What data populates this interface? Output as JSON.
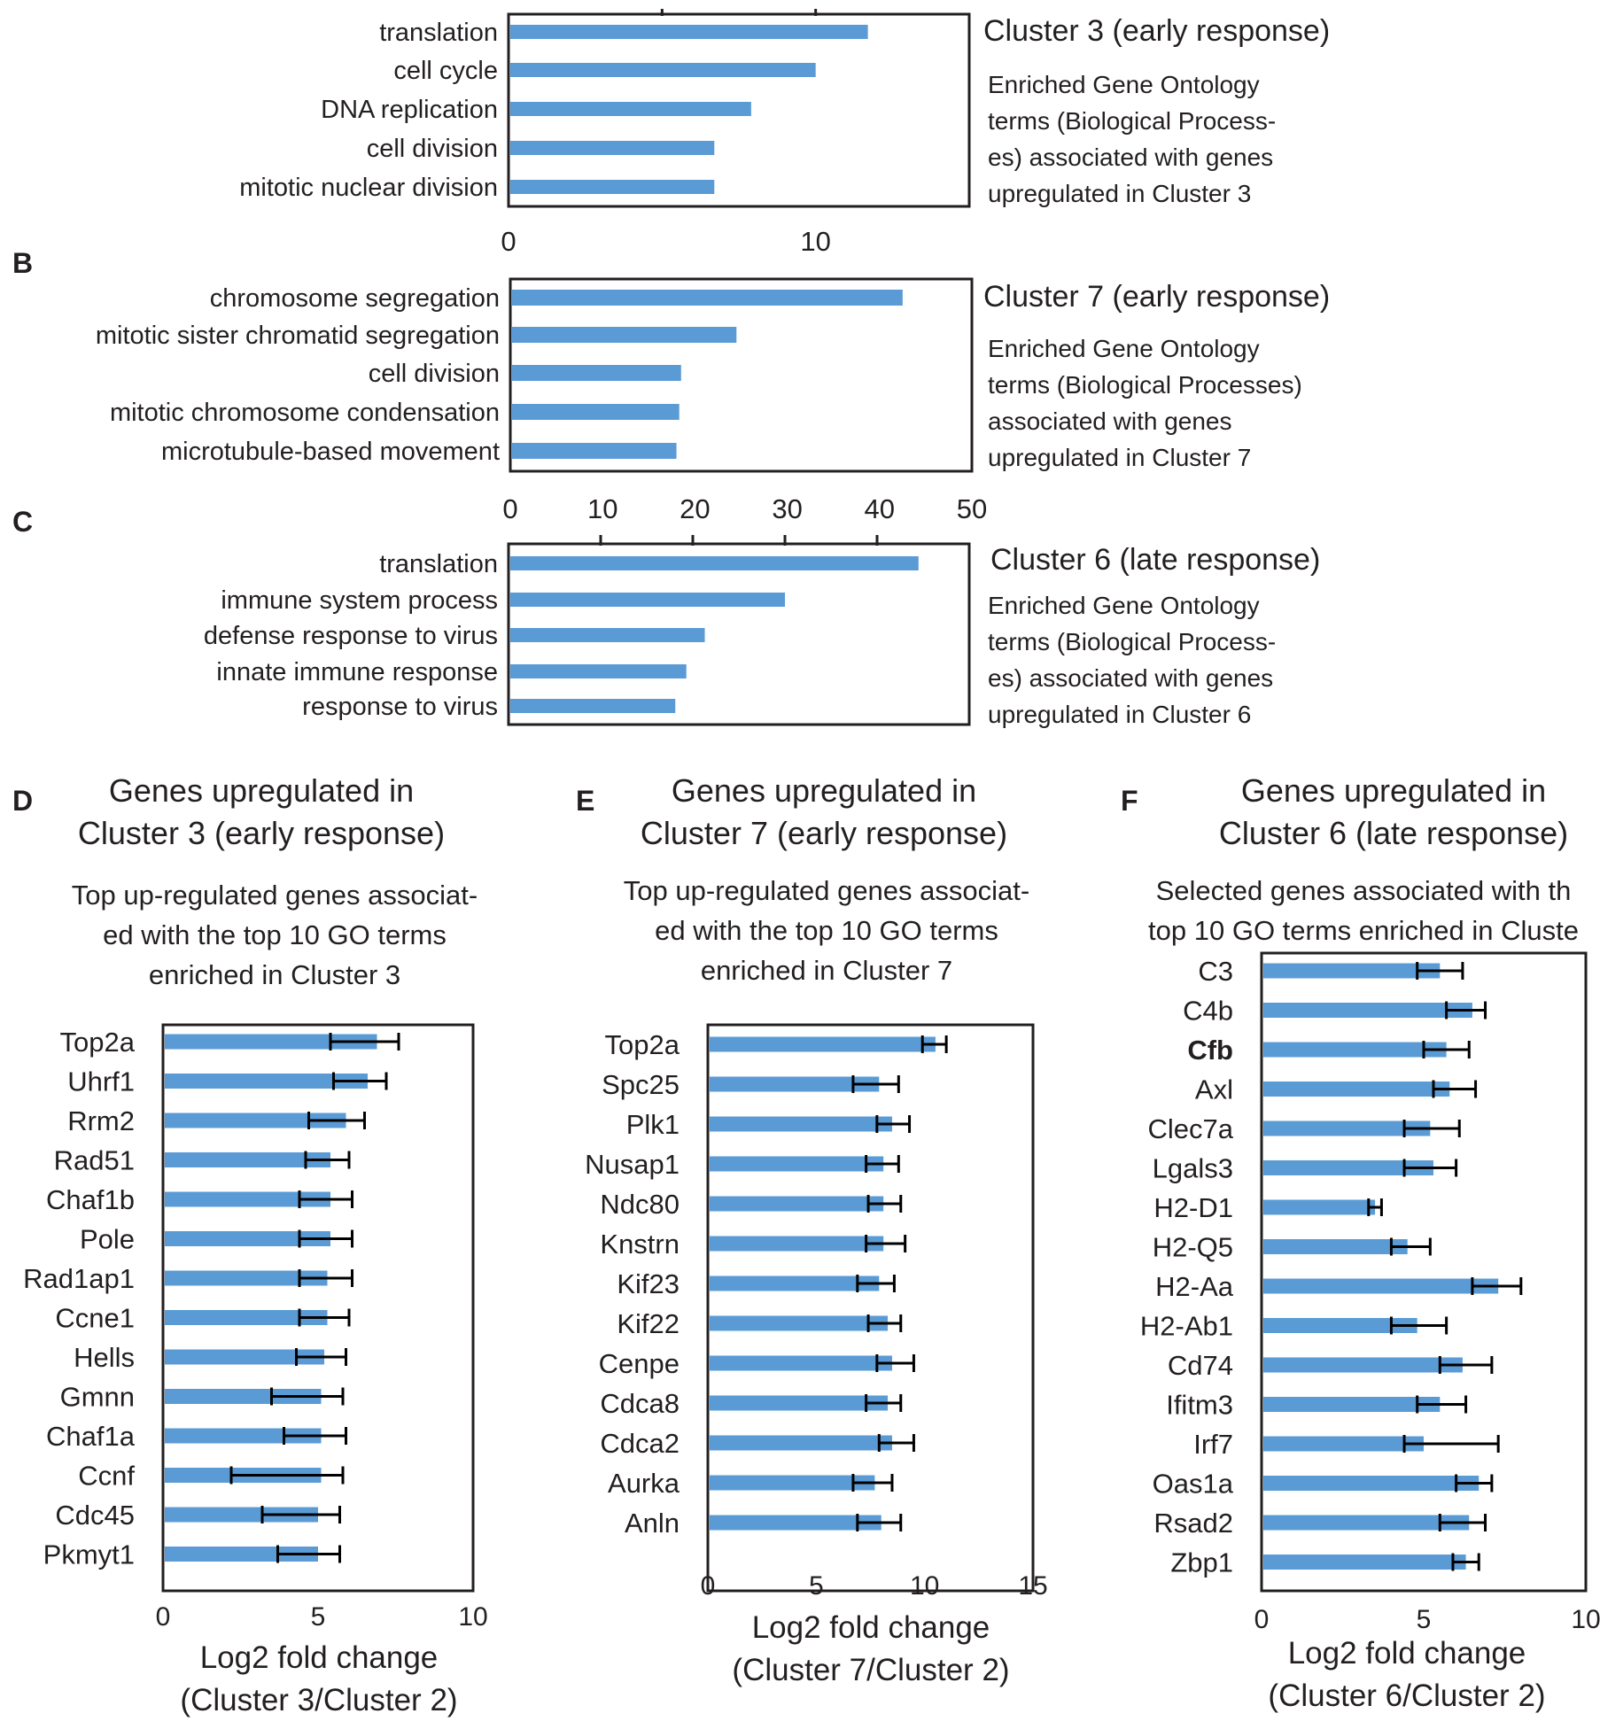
{
  "panel_labels": [
    "B",
    "C",
    "D",
    "E",
    "F"
  ],
  "chart_data": [
    {
      "id": "A",
      "type": "bar",
      "orientation": "horizontal",
      "title": "Cluster 3 (early response)",
      "description": [
        "Enriched Gene Ontology",
        "terms (Biological Process-",
        "es) associated with genes",
        "upregulated in Cluster 3"
      ],
      "categories": [
        "translation",
        "cell cycle",
        "DNA replication",
        "cell division",
        "mitotic nuclear division"
      ],
      "values": [
        11.7,
        10.0,
        7.9,
        6.7,
        6.7
      ],
      "xlim": [
        0,
        15
      ],
      "xticks": [
        0,
        10
      ],
      "xticks_position": "bottom",
      "error_bars": false,
      "color": "#5b9bd5"
    },
    {
      "id": "B",
      "type": "bar",
      "orientation": "horizontal",
      "title": "Cluster 7 (early response)",
      "description": [
        "Enriched Gene Ontology",
        "terms (Biological Processes)",
        "associated with genes",
        "upregulated in Cluster 7"
      ],
      "categories": [
        "chromosome segregation",
        "mitotic sister chromatid segregation",
        "cell division",
        "mitotic chromosome condensation",
        "microtubule-based movement"
      ],
      "values": [
        42.5,
        24.5,
        18.5,
        18.3,
        18.0
      ],
      "xlim": [
        0,
        50
      ],
      "xticks": [
        0,
        10,
        20,
        30,
        40,
        50
      ],
      "xticks_position": "bottom",
      "error_bars": false,
      "color": "#5b9bd5"
    },
    {
      "id": "C",
      "type": "bar",
      "orientation": "horizontal",
      "title": "Cluster 6 (late response)",
      "description": [
        "Enriched Gene Ontology",
        "terms (Biological Process-",
        "es) associated with genes",
        "upregulated in Cluster 6"
      ],
      "categories": [
        "translation",
        "immune system process",
        "defense response to virus",
        "innate immune response",
        "response to virus"
      ],
      "values": [
        44.5,
        30.0,
        21.3,
        19.3,
        18.1
      ],
      "xlim": [
        0,
        50
      ],
      "xticks": [],
      "xticks_position": "none",
      "error_bars": false,
      "color": "#5b9bd5"
    },
    {
      "id": "D",
      "type": "bar",
      "orientation": "horizontal",
      "title": [
        "Genes upregulated in",
        "Cluster 3 (early response)"
      ],
      "subtitle": [
        "Top up-regulated genes associat-",
        "ed with the top 10 GO terms",
        "enriched in Cluster 3"
      ],
      "xlabel": [
        "Log2 fold change",
        "(Cluster 3/Cluster 2)"
      ],
      "categories": [
        "Top2a",
        "Uhrf1",
        "Rrm2",
        "Rad51",
        "Chaf1b",
        "Pole",
        "Rad1ap1",
        "Ccne1",
        "Hells",
        "Gmnn",
        "Chaf1a",
        "Ccnf",
        "Cdc45",
        "Pkmyt1"
      ],
      "values": [
        6.9,
        6.6,
        5.9,
        5.4,
        5.4,
        5.4,
        5.3,
        5.3,
        5.2,
        5.1,
        5.1,
        5.1,
        5.0,
        5.0
      ],
      "error_low": [
        5.4,
        5.5,
        4.7,
        4.6,
        4.4,
        4.4,
        4.4,
        4.4,
        4.3,
        3.5,
        3.9,
        2.2,
        3.2,
        3.7
      ],
      "error_high": [
        7.6,
        7.2,
        6.5,
        6.0,
        6.1,
        6.1,
        6.1,
        6.0,
        5.9,
        5.8,
        5.9,
        5.8,
        5.7,
        5.7
      ],
      "xlim": [
        0,
        10
      ],
      "xticks": [
        0,
        5,
        10
      ],
      "error_bars": true,
      "color": "#5b9bd5"
    },
    {
      "id": "E",
      "type": "bar",
      "orientation": "horizontal",
      "title": [
        "Genes upregulated in",
        "Cluster 7 (early response)"
      ],
      "subtitle": [
        "Top up-regulated genes associat-",
        "ed with the top 10 GO terms",
        "enriched in Cluster 7"
      ],
      "xlabel": [
        "Log2 fold change",
        "(Cluster 7/Cluster 2)"
      ],
      "categories": [
        "Top2a",
        "Spc25",
        "Plk1",
        "Nusap1",
        "Ndc80",
        "Knstrn",
        "Kif23",
        "Kif22",
        "Cenpe",
        "Cdca8",
        "Cdca2",
        "Aurka",
        "Anln"
      ],
      "values": [
        10.5,
        7.9,
        8.5,
        8.1,
        8.1,
        8.1,
        7.9,
        8.3,
        8.5,
        8.3,
        8.5,
        7.7,
        8.0
      ],
      "error_low": [
        9.9,
        6.7,
        7.8,
        7.3,
        7.4,
        7.3,
        6.9,
        7.4,
        7.8,
        7.3,
        7.9,
        6.7,
        6.9
      ],
      "error_high": [
        11.0,
        8.8,
        9.3,
        8.8,
        8.9,
        9.1,
        8.6,
        8.9,
        9.5,
        8.9,
        9.5,
        8.5,
        8.9
      ],
      "xlim": [
        0,
        15
      ],
      "xticks": [
        0,
        5,
        10,
        15
      ],
      "error_bars": true,
      "color": "#5b9bd5"
    },
    {
      "id": "F",
      "type": "bar",
      "orientation": "horizontal",
      "title": [
        "Genes upregulated in",
        "Cluster 6 (late response)"
      ],
      "subtitle": [
        "Selected genes associated with th",
        "top 10 GO terms enriched in Cluste"
      ],
      "xlabel": [
        "Log2 fold change",
        "(Cluster 6/Cluster 2)"
      ],
      "categories": [
        "C3",
        "C4b",
        "Cfb",
        "Axl",
        "Clec7a",
        "Lgals3",
        "H2-D1",
        "H2-Q5",
        "H2-Aa",
        "H2-Ab1",
        "Cd74",
        "Ifitm3",
        "Irf7",
        "Oas1a",
        "Rsad2",
        "Zbp1"
      ],
      "bold_categories": [
        "Cfb"
      ],
      "values": [
        5.5,
        6.5,
        5.7,
        5.8,
        5.2,
        5.3,
        3.5,
        4.5,
        7.3,
        4.8,
        6.2,
        5.5,
        5.0,
        6.7,
        6.4,
        6.3
      ],
      "error_low": [
        4.8,
        5.7,
        5.0,
        5.3,
        4.4,
        4.4,
        3.3,
        4.0,
        6.5,
        4.0,
        5.5,
        4.8,
        4.4,
        6.0,
        5.5,
        5.9
      ],
      "error_high": [
        6.2,
        6.9,
        6.4,
        6.6,
        6.1,
        6.0,
        3.7,
        5.2,
        8.0,
        5.7,
        7.1,
        6.3,
        7.3,
        7.1,
        6.9,
        6.7
      ],
      "xlim": [
        0,
        10
      ],
      "xticks": [
        0,
        5,
        10
      ],
      "error_bars": true,
      "color": "#5b9bd5"
    }
  ]
}
